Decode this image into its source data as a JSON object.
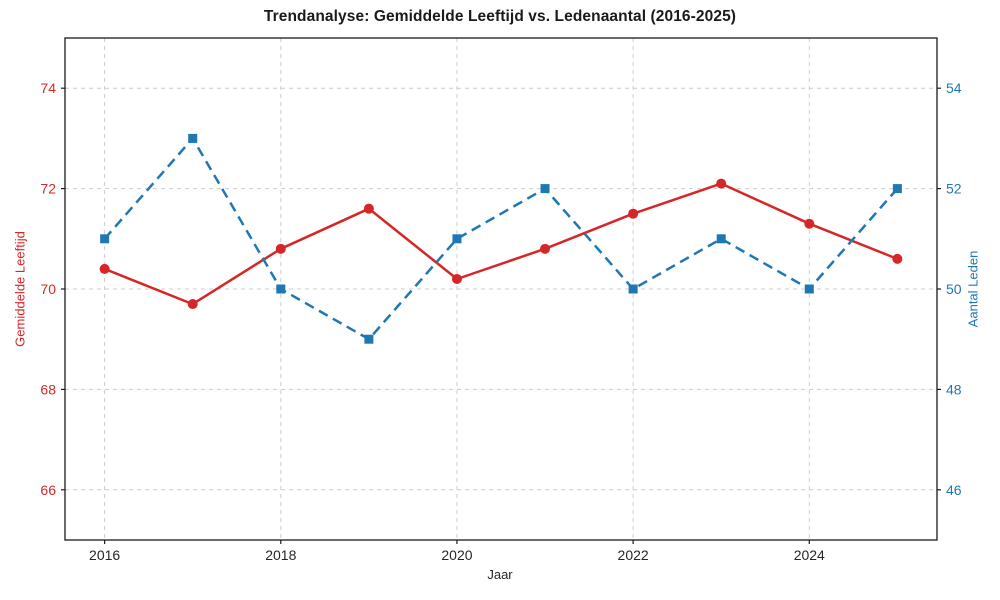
{
  "page": {
    "background": "#ffffff"
  },
  "chart_data": {
    "type": "line",
    "title": "Trendanalyse: Gemiddelde Leeftijd vs. Ledenaantal (2016-2025)",
    "xlabel": "Jaar",
    "x": [
      2016,
      2017,
      2018,
      2019,
      2020,
      2021,
      2022,
      2023,
      2024,
      2025
    ],
    "x_ticks": [
      2016,
      2018,
      2020,
      2022,
      2024
    ],
    "xlim": [
      2015.55,
      2025.45
    ],
    "grid": true,
    "legend": "none",
    "left_axis": {
      "label": "Gemiddelde Leeftijd",
      "color": "#d62728",
      "ticks": [
        66,
        68,
        70,
        72,
        74
      ],
      "lim": [
        65.0,
        75.0
      ]
    },
    "right_axis": {
      "label": "Aantal Leden",
      "color": "#1f77b4",
      "ticks": [
        46,
        48,
        50,
        52,
        54
      ],
      "lim": [
        45.0,
        55.0
      ]
    },
    "series": [
      {
        "name": "Gemiddelde Leeftijd",
        "axis": "left",
        "color": "#d62728",
        "line_style": "solid",
        "marker": "circle",
        "values": [
          70.4,
          69.7,
          70.8,
          71.6,
          70.2,
          70.8,
          71.5,
          72.1,
          71.3,
          70.6
        ]
      },
      {
        "name": "Aantal Leden",
        "axis": "right",
        "color": "#1f77b4",
        "line_style": "dashed",
        "marker": "square",
        "values": [
          51,
          53,
          50,
          49,
          51,
          52,
          50,
          51,
          50,
          52
        ]
      }
    ],
    "styles": {
      "grid_color": "#cccccc",
      "spine_color": "#1a1a1a",
      "tick_text_color": "#262626"
    }
  }
}
